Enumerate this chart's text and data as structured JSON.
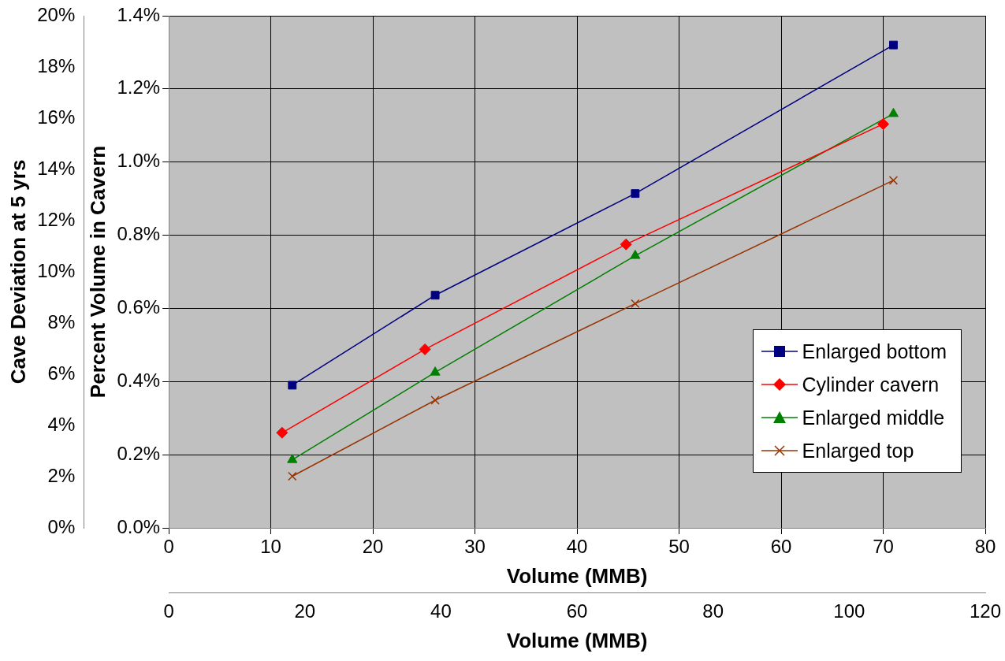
{
  "chart_data": {
    "type": "line",
    "xlabel": "Volume (MMB)",
    "x2label": "Volume (MMB)",
    "ylabel": "Percent Volume in Cavern",
    "y2label": "Cave Deviation at 5 yrs",
    "series": [
      {
        "name": "Enlarged bottom",
        "color": "#000080",
        "marker": "square",
        "x": [
          12.1,
          26.1,
          45.7,
          71.0
        ],
        "values": [
          0.39,
          0.636,
          0.914,
          1.32
        ]
      },
      {
        "name": "Cylinder cavern",
        "color": "#ff0000",
        "marker": "diamond",
        "x": [
          11.1,
          25.1,
          44.8,
          70.0
        ],
        "values": [
          0.26,
          0.488,
          0.775,
          1.104
        ]
      },
      {
        "name": "Enlarged middle",
        "color": "#008000",
        "marker": "triangle",
        "x": [
          12.1,
          26.1,
          45.7,
          71.0
        ],
        "values": [
          0.186,
          0.425,
          0.744,
          1.132
        ]
      },
      {
        "name": "Enlarged top",
        "color": "#993300",
        "marker": "cross",
        "x": [
          12.1,
          26.1,
          45.7,
          71.0
        ],
        "values": [
          0.141,
          0.349,
          0.613,
          0.95
        ]
      }
    ],
    "xlim": [
      0,
      80
    ],
    "xticks": [
      0,
      10,
      20,
      30,
      40,
      50,
      60,
      70,
      80
    ],
    "x2lim": [
      0,
      120
    ],
    "x2ticks": [
      0,
      20,
      40,
      60,
      80,
      100,
      120
    ],
    "ylim": [
      0,
      1.4
    ],
    "yticks": [
      {
        "value": 0,
        "label": "0.0%"
      },
      {
        "value": 0.2,
        "label": "0.2%"
      },
      {
        "value": 0.4,
        "label": "0.4%"
      },
      {
        "value": 0.6,
        "label": "0.6%"
      },
      {
        "value": 0.8,
        "label": "0.8%"
      },
      {
        "value": 1.0,
        "label": "1.0%"
      },
      {
        "value": 1.2,
        "label": "1.2%"
      },
      {
        "value": 1.4,
        "label": "1.4%"
      }
    ],
    "y2lim": [
      0,
      20
    ],
    "y2ticks": [
      {
        "value": 0,
        "label": "0%"
      },
      {
        "value": 2,
        "label": "2%"
      },
      {
        "value": 4,
        "label": "4%"
      },
      {
        "value": 6,
        "label": "6%"
      },
      {
        "value": 8,
        "label": "8%"
      },
      {
        "value": 10,
        "label": "10%"
      },
      {
        "value": 12,
        "label": "12%"
      },
      {
        "value": 14,
        "label": "14%"
      },
      {
        "value": 16,
        "label": "16%"
      },
      {
        "value": 18,
        "label": "18%"
      },
      {
        "value": 20,
        "label": "20%"
      }
    ],
    "grid": true,
    "legend": "bottom right"
  }
}
